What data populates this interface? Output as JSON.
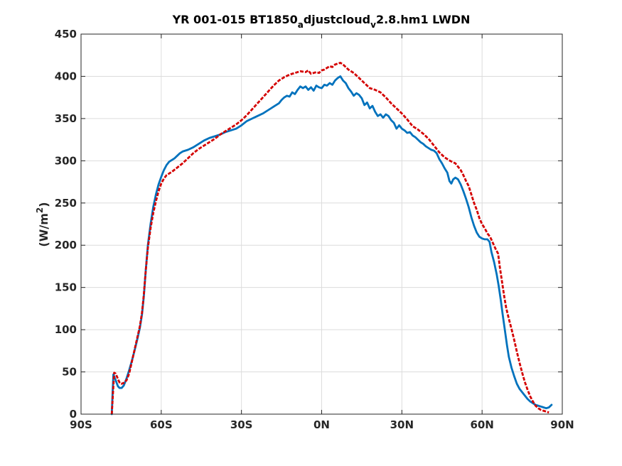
{
  "chart_data": {
    "type": "line",
    "title": {
      "prefix": "YR 001-015 BT1850",
      "sub1": "a",
      "middle": "djustcloud",
      "sub2": "v",
      "suffix": "2.8.hm1 LWDN"
    },
    "ylabel": {
      "prefix": "(W/m",
      "sup": "2",
      "suffix": ")"
    },
    "xlabel": "",
    "xlim": [
      -90,
      90
    ],
    "ylim": [
      0,
      450
    ],
    "grid": true,
    "x_ticks": [
      {
        "value": -90,
        "label": "90S"
      },
      {
        "value": -60,
        "label": "60S"
      },
      {
        "value": -30,
        "label": "30S"
      },
      {
        "value": 0,
        "label": "0N"
      },
      {
        "value": 30,
        "label": "30N"
      },
      {
        "value": 60,
        "label": "60N"
      },
      {
        "value": 90,
        "label": "90N"
      }
    ],
    "y_ticks": [
      {
        "value": 0,
        "label": "0"
      },
      {
        "value": 50,
        "label": "50"
      },
      {
        "value": 100,
        "label": "100"
      },
      {
        "value": 150,
        "label": "150"
      },
      {
        "value": 200,
        "label": "200"
      },
      {
        "value": 250,
        "label": "250"
      },
      {
        "value": 300,
        "label": "300"
      },
      {
        "value": 350,
        "label": "350"
      },
      {
        "value": 400,
        "label": "400"
      }
    ],
    "top_tick_label": "450",
    "series": [
      {
        "style": "solid",
        "color": "#0072BD",
        "points": [
          [
            -78.5,
            0
          ],
          [
            -78.2,
            25
          ],
          [
            -77.9,
            47
          ],
          [
            -77.5,
            44
          ],
          [
            -76.8,
            38
          ],
          [
            -76.2,
            33
          ],
          [
            -75.6,
            31
          ],
          [
            -74.8,
            31
          ],
          [
            -74.0,
            34
          ],
          [
            -73.0,
            42
          ],
          [
            -72.0,
            52
          ],
          [
            -71.0,
            63
          ],
          [
            -70.0,
            75
          ],
          [
            -69.0,
            88
          ],
          [
            -68.0,
            102
          ],
          [
            -67.2,
            118
          ],
          [
            -66.5,
            140
          ],
          [
            -65.8,
            170
          ],
          [
            -65.0,
            200
          ],
          [
            -64.0,
            225
          ],
          [
            -63.0,
            245
          ],
          [
            -62.0,
            260
          ],
          [
            -61.0,
            272
          ],
          [
            -60.0,
            281
          ],
          [
            -59.0,
            289
          ],
          [
            -58.0,
            295
          ],
          [
            -57.0,
            299
          ],
          [
            -56.0,
            301
          ],
          [
            -55.0,
            303
          ],
          [
            -54.0,
            306
          ],
          [
            -53.0,
            309
          ],
          [
            -52.0,
            311
          ],
          [
            -50.0,
            313
          ],
          [
            -48.0,
            316
          ],
          [
            -46.0,
            320
          ],
          [
            -44.0,
            324
          ],
          [
            -42.0,
            327
          ],
          [
            -40.0,
            329
          ],
          [
            -38.0,
            331
          ],
          [
            -36.0,
            334
          ],
          [
            -34.0,
            336
          ],
          [
            -32.0,
            338
          ],
          [
            -30.0,
            342
          ],
          [
            -28.0,
            347
          ],
          [
            -26.0,
            350
          ],
          [
            -24.0,
            353
          ],
          [
            -22.0,
            356
          ],
          [
            -20.0,
            360
          ],
          [
            -18.0,
            364
          ],
          [
            -16.0,
            368
          ],
          [
            -15.0,
            372
          ],
          [
            -14.0,
            375
          ],
          [
            -13.0,
            377
          ],
          [
            -12.0,
            376
          ],
          [
            -11.0,
            381
          ],
          [
            -10.0,
            379
          ],
          [
            -9.0,
            384
          ],
          [
            -8.0,
            388
          ],
          [
            -7.0,
            386
          ],
          [
            -6.0,
            388
          ],
          [
            -5.0,
            384
          ],
          [
            -4.0,
            387
          ],
          [
            -3.0,
            383
          ],
          [
            -2.0,
            389
          ],
          [
            -1.0,
            387
          ],
          [
            0.0,
            386
          ],
          [
            1.0,
            390
          ],
          [
            2.0,
            389
          ],
          [
            3.0,
            392
          ],
          [
            4.0,
            390
          ],
          [
            5.0,
            395
          ],
          [
            6.0,
            398
          ],
          [
            7.0,
            400
          ],
          [
            8.0,
            395
          ],
          [
            9.0,
            392
          ],
          [
            10.0,
            386
          ],
          [
            11.0,
            382
          ],
          [
            12.0,
            377
          ],
          [
            13.0,
            380
          ],
          [
            14.0,
            378
          ],
          [
            15.0,
            374
          ],
          [
            16.0,
            366
          ],
          [
            17.0,
            369
          ],
          [
            18.0,
            362
          ],
          [
            19.0,
            365
          ],
          [
            20.0,
            358
          ],
          [
            21.0,
            353
          ],
          [
            22.0,
            355
          ],
          [
            23.0,
            351
          ],
          [
            24.0,
            355
          ],
          [
            25.0,
            353
          ],
          [
            26.0,
            348
          ],
          [
            27.0,
            345
          ],
          [
            28.0,
            338
          ],
          [
            29.0,
            342
          ],
          [
            30.0,
            338
          ],
          [
            31.0,
            336
          ],
          [
            32.0,
            333
          ],
          [
            33.0,
            334
          ],
          [
            34.0,
            330
          ],
          [
            35.0,
            328
          ],
          [
            36.0,
            325
          ],
          [
            37.0,
            322
          ],
          [
            38.0,
            320
          ],
          [
            39.0,
            317
          ],
          [
            40.0,
            315
          ],
          [
            41.0,
            313
          ],
          [
            42.0,
            312
          ],
          [
            43.0,
            309
          ],
          [
            44.0,
            302
          ],
          [
            45.0,
            297
          ],
          [
            46.0,
            291
          ],
          [
            47.0,
            286
          ],
          [
            47.8,
            276
          ],
          [
            48.5,
            273
          ],
          [
            49.2,
            278
          ],
          [
            50.0,
            280
          ],
          [
            51.0,
            278
          ],
          [
            52.0,
            272
          ],
          [
            53.0,
            264
          ],
          [
            54.0,
            255
          ],
          [
            55.0,
            245
          ],
          [
            56.0,
            233
          ],
          [
            57.0,
            223
          ],
          [
            58.0,
            215
          ],
          [
            59.0,
            210
          ],
          [
            60.0,
            208
          ],
          [
            61.0,
            207
          ],
          [
            62.0,
            207
          ],
          [
            62.8,
            204
          ],
          [
            63.5,
            192
          ],
          [
            64.5,
            180
          ],
          [
            65.5,
            165
          ],
          [
            66.2,
            152
          ],
          [
            67.0,
            135
          ],
          [
            67.7,
            118
          ],
          [
            68.5,
            100
          ],
          [
            69.3,
            82
          ],
          [
            70.0,
            68
          ],
          [
            71.0,
            55
          ],
          [
            72.0,
            45
          ],
          [
            73.0,
            36
          ],
          [
            74.0,
            30
          ],
          [
            75.0,
            26
          ],
          [
            76.0,
            22
          ],
          [
            77.0,
            18
          ],
          [
            78.0,
            15
          ],
          [
            79.0,
            13
          ],
          [
            80.0,
            11
          ],
          [
            81.0,
            10
          ],
          [
            82.0,
            9
          ],
          [
            83.0,
            8
          ],
          [
            84.0,
            7
          ],
          [
            85.0,
            8
          ],
          [
            86.0,
            11
          ]
        ]
      },
      {
        "style": "dashed",
        "color": "#D40000",
        "points": [
          [
            -78.5,
            0
          ],
          [
            -78.0,
            28
          ],
          [
            -77.6,
            49
          ],
          [
            -77.1,
            48
          ],
          [
            -76.5,
            44
          ],
          [
            -76.0,
            40
          ],
          [
            -75.5,
            37
          ],
          [
            -74.8,
            36
          ],
          [
            -74.0,
            37
          ],
          [
            -73.0,
            40
          ],
          [
            -72.0,
            48
          ],
          [
            -71.0,
            62
          ],
          [
            -70.0,
            76
          ],
          [
            -69.0,
            90
          ],
          [
            -68.0,
            104
          ],
          [
            -67.2,
            120
          ],
          [
            -66.5,
            142
          ],
          [
            -65.8,
            170
          ],
          [
            -65.0,
            197
          ],
          [
            -64.0,
            220
          ],
          [
            -63.0,
            238
          ],
          [
            -62.0,
            252
          ],
          [
            -61.0,
            264
          ],
          [
            -60.0,
            273
          ],
          [
            -59.0,
            279
          ],
          [
            -58.0,
            283
          ],
          [
            -56.0,
            287
          ],
          [
            -54.0,
            292
          ],
          [
            -52.0,
            297
          ],
          [
            -50.0,
            303
          ],
          [
            -48.0,
            309
          ],
          [
            -46.0,
            314
          ],
          [
            -44.0,
            318
          ],
          [
            -42.0,
            322
          ],
          [
            -40.0,
            326
          ],
          [
            -38.0,
            331
          ],
          [
            -36.0,
            335
          ],
          [
            -34.0,
            339
          ],
          [
            -32.0,
            343
          ],
          [
            -30.0,
            348
          ],
          [
            -28.0,
            354
          ],
          [
            -26.0,
            361
          ],
          [
            -24.0,
            368
          ],
          [
            -22.0,
            375
          ],
          [
            -20.0,
            382
          ],
          [
            -18.0,
            389
          ],
          [
            -16.0,
            395
          ],
          [
            -14.0,
            399
          ],
          [
            -12.0,
            402
          ],
          [
            -10.0,
            404
          ],
          [
            -8.0,
            406
          ],
          [
            -6.0,
            405
          ],
          [
            -5.0,
            407
          ],
          [
            -4.0,
            403
          ],
          [
            -3.0,
            404
          ],
          [
            -2.0,
            405
          ],
          [
            -1.0,
            404
          ],
          [
            0.0,
            407
          ],
          [
            1.0,
            408
          ],
          [
            2.0,
            410
          ],
          [
            3.0,
            412
          ],
          [
            4.0,
            411
          ],
          [
            5.0,
            414
          ],
          [
            6.0,
            415
          ],
          [
            7.0,
            416
          ],
          [
            8.0,
            414
          ],
          [
            9.0,
            411
          ],
          [
            10.0,
            408
          ],
          [
            12.0,
            404
          ],
          [
            14.0,
            398
          ],
          [
            16.0,
            392
          ],
          [
            18.0,
            386
          ],
          [
            20.0,
            384
          ],
          [
            22.0,
            381
          ],
          [
            24.0,
            375
          ],
          [
            26.0,
            368
          ],
          [
            28.0,
            362
          ],
          [
            30.0,
            356
          ],
          [
            32.0,
            349
          ],
          [
            34.0,
            341
          ],
          [
            36.0,
            337
          ],
          [
            38.0,
            332
          ],
          [
            40.0,
            326
          ],
          [
            42.0,
            318
          ],
          [
            44.0,
            310
          ],
          [
            46.0,
            304
          ],
          [
            48.0,
            300
          ],
          [
            50.0,
            297
          ],
          [
            51.0,
            293
          ],
          [
            52.0,
            289
          ],
          [
            53.0,
            283
          ],
          [
            54.0,
            276
          ],
          [
            55.0,
            270
          ],
          [
            56.0,
            260
          ],
          [
            57.0,
            250
          ],
          [
            58.0,
            242
          ],
          [
            59.0,
            232
          ],
          [
            60.0,
            225
          ],
          [
            61.0,
            220
          ],
          [
            62.0,
            214
          ],
          [
            63.0,
            210
          ],
          [
            64.0,
            203
          ],
          [
            65.0,
            196
          ],
          [
            66.0,
            190
          ],
          [
            66.6,
            175
          ],
          [
            67.4,
            158
          ],
          [
            68.2,
            141
          ],
          [
            69.0,
            126
          ],
          [
            70.0,
            113
          ],
          [
            71.0,
            101
          ],
          [
            72.0,
            88
          ],
          [
            73.0,
            74
          ],
          [
            74.0,
            61
          ],
          [
            75.0,
            49
          ],
          [
            76.0,
            38
          ],
          [
            77.0,
            29
          ],
          [
            78.0,
            21
          ],
          [
            79.0,
            15
          ],
          [
            80.0,
            10
          ],
          [
            81.0,
            7
          ],
          [
            82.0,
            5
          ],
          [
            83.0,
            4
          ],
          [
            84.0,
            3
          ],
          [
            85.0,
            2
          ]
        ]
      }
    ]
  }
}
